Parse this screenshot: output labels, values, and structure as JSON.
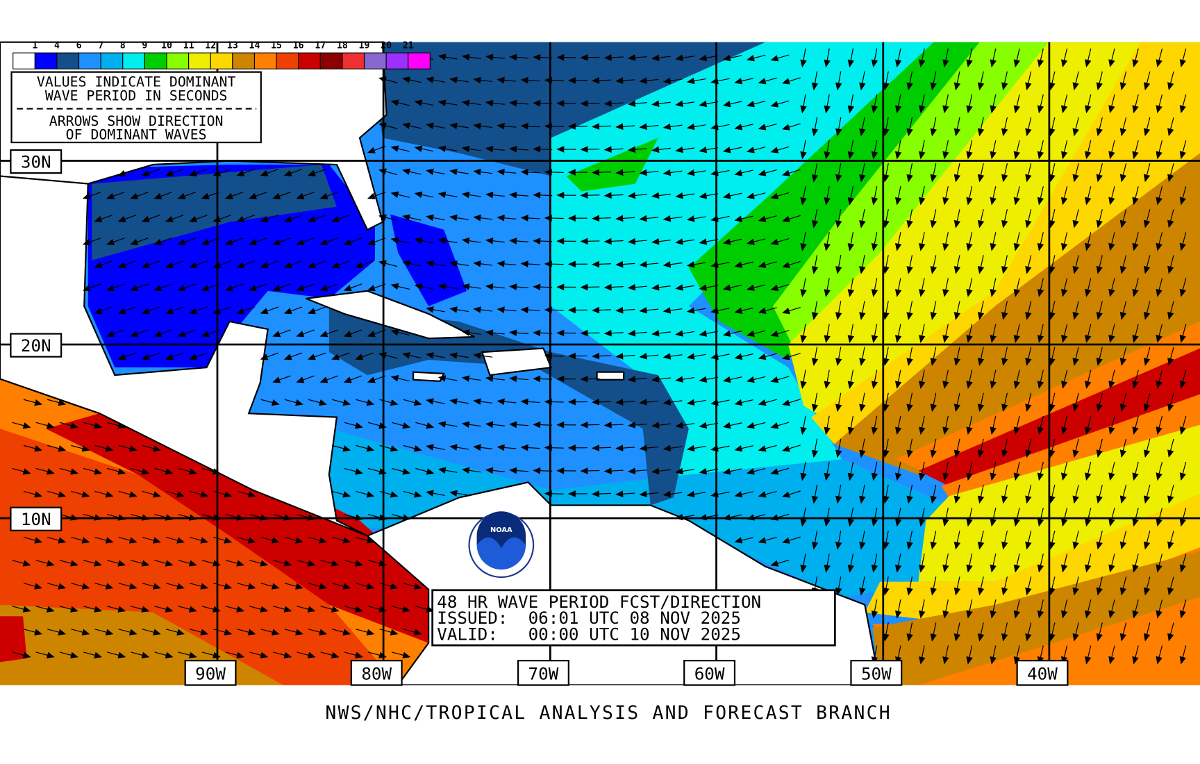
{
  "legend": {
    "labels": [
      "1",
      "4",
      "6",
      "7",
      "8",
      "9",
      "10",
      "11",
      "12",
      "13",
      "14",
      "15",
      "16",
      "17",
      "18",
      "19",
      "20",
      "21"
    ],
    "colors": [
      "#ffffff",
      "#0000ff",
      "#134f8a",
      "#1e90ff",
      "#00b0ee",
      "#00eeee",
      "#00cd00",
      "#87ff00",
      "#eeee00",
      "#ffd700",
      "#cd8500",
      "#ff7f00",
      "#ee4000",
      "#cd0000",
      "#8b0000",
      "#ee3030",
      "#8968cd",
      "#9b30ff",
      "#ff00ff"
    ]
  },
  "info_box": {
    "line1": "VALUES INDICATE DOMINANT",
    "line2": "WAVE PERIOD IN SECONDS",
    "line3": "ARROWS SHOW DIRECTION",
    "line4": "OF DOMINANT WAVES"
  },
  "title_box": {
    "title": "48 HR WAVE PERIOD FCST/DIRECTION",
    "issued": "ISSUED:  06:01 UTC 08 NOV 2025",
    "valid": "VALID:   00:00 UTC 10 NOV 2025"
  },
  "latitudes": [
    "30N",
    "20N",
    "10N"
  ],
  "longitudes": [
    "90W",
    "80W",
    "70W",
    "60W",
    "50W",
    "40W"
  ],
  "logo": "NOAA",
  "footer": "NWS/NHC/TROPICAL ANALYSIS AND FORECAST BRANCH"
}
